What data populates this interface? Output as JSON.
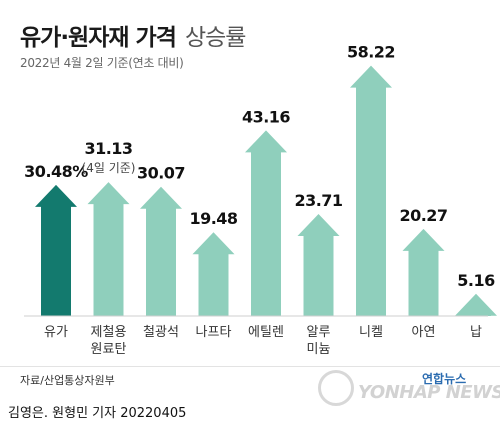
{
  "header": {
    "title": "유가·원자재 가격",
    "title_suffix": "상승률",
    "subtitle": "2022년 4월 2일 기준(연초 대비)"
  },
  "footer": {
    "source": "자료/산업통상자원부",
    "byline": "김영은. 원형민 기자  20220405",
    "logo_ko": "연합뉴스",
    "logo_en": "YONHAP NEWS"
  },
  "colors": {
    "highlight": "#137a6e",
    "bar": "#8fcfbc",
    "value_text": "#111111",
    "label_text": "#333333"
  },
  "chart_data": {
    "type": "bar",
    "title": "유가·원자재 가격 상승률",
    "subtitle": "2022년 4월 2일 기준(연초 대비)",
    "unit": "%",
    "categories": [
      "유가",
      "제철용\n원료탄",
      "철광석",
      "나프타",
      "에틸렌",
      "알루\n미늄",
      "니켈",
      "아연",
      "납"
    ],
    "values": [
      30.48,
      31.13,
      30.07,
      19.48,
      43.16,
      23.71,
      58.22,
      20.27,
      5.16
    ],
    "value_labels": [
      "30.48%",
      "31.13",
      "30.07",
      "19.48",
      "43.16",
      "23.71",
      "58.22",
      "20.27",
      "5.16"
    ],
    "annotations": [
      {
        "category": "제철용\n원료탄",
        "text": "(4일 기준)"
      }
    ],
    "highlight_index": 0,
    "ylim": [
      0,
      60
    ],
    "grid": false,
    "legend": "none"
  }
}
